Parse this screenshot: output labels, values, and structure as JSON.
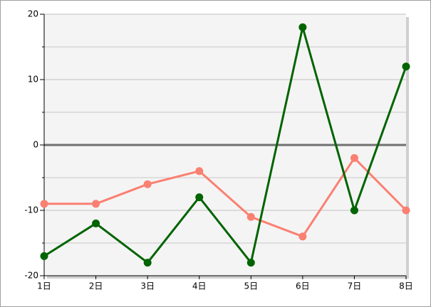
{
  "chart_data": {
    "type": "line",
    "categories": [
      "1日",
      "2日",
      "3日",
      "4日",
      "5日",
      "6日",
      "7日",
      "8日"
    ],
    "series": [
      {
        "color": "#006400",
        "values": [
          -17,
          -12,
          -18,
          -8,
          -18,
          18,
          -10,
          12
        ]
      },
      {
        "color": "#fa8072",
        "values": [
          -9,
          -9,
          -6,
          -4,
          -11,
          -14,
          -2,
          -10
        ]
      }
    ],
    "ylim": [
      -20,
      20
    ],
    "yticks": [
      -20,
      -10,
      0,
      10,
      20
    ],
    "minor_grid": [
      -15,
      -5,
      5,
      15
    ],
    "grid": true
  }
}
